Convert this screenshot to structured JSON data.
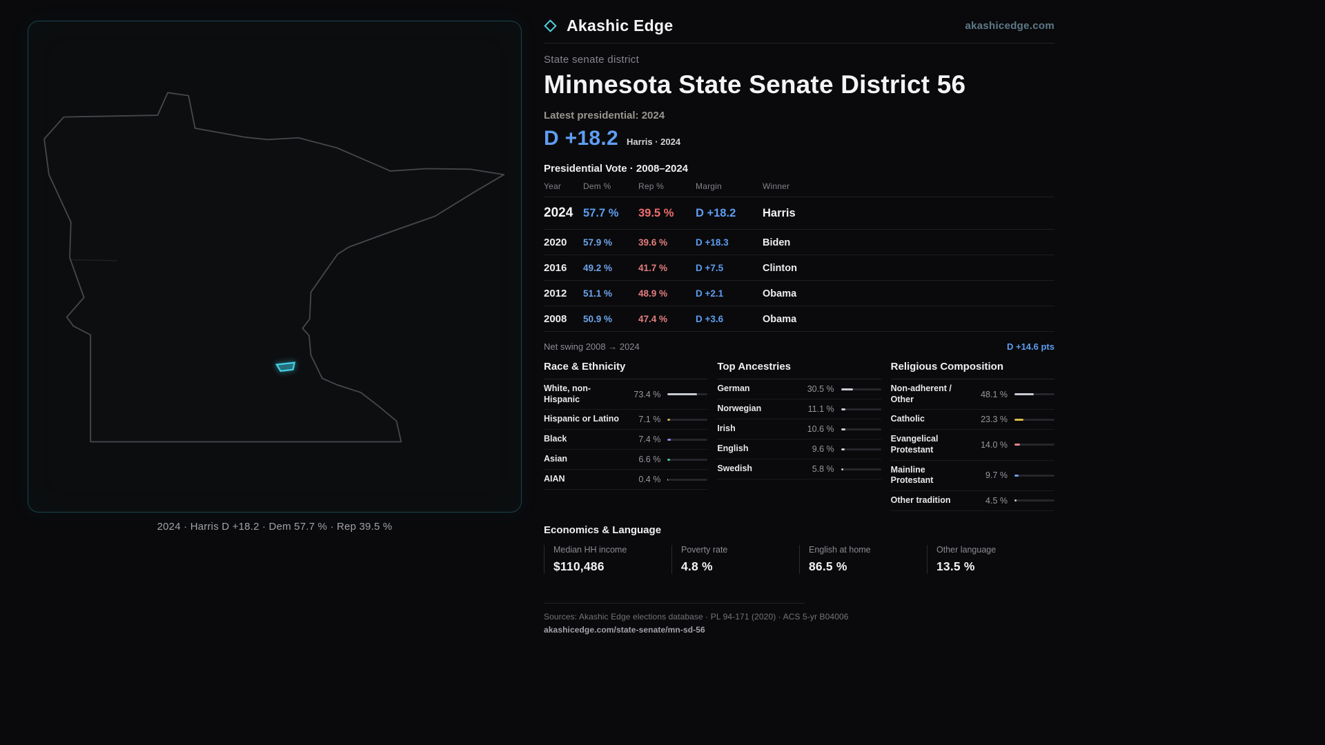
{
  "brand": {
    "name": "Akashic Edge",
    "domain": "akashicedge.com"
  },
  "page": {
    "eyebrow": "State senate district",
    "title": "Minnesota State Senate District 56",
    "latest_label": "Latest presidential: 2024",
    "headline_margin": "D +18.2",
    "headline_note": "Harris · 2024"
  },
  "map": {
    "caption": "2024 · Harris D +18.2 · Dem 57.7 % · Rep 39.5 %"
  },
  "vote_table": {
    "title": "Presidential Vote · 2008–2024",
    "columns": [
      "Year",
      "Dem %",
      "Rep %",
      "Margin",
      "Winner"
    ],
    "rows": [
      {
        "year": "2024",
        "dem": "57.7 %",
        "rep": "39.5 %",
        "margin": "D +18.2",
        "winner": "Harris"
      },
      {
        "year": "2020",
        "dem": "57.9 %",
        "rep": "39.6 %",
        "margin": "D +18.3",
        "winner": "Biden"
      },
      {
        "year": "2016",
        "dem": "49.2 %",
        "rep": "41.7 %",
        "margin": "D +7.5",
        "winner": "Clinton"
      },
      {
        "year": "2012",
        "dem": "51.1 %",
        "rep": "48.9 %",
        "margin": "D +2.1",
        "winner": "Obama"
      },
      {
        "year": "2008",
        "dem": "50.9 %",
        "rep": "47.4 %",
        "margin": "D +3.6",
        "winner": "Obama"
      }
    ]
  },
  "net_swing": {
    "label": "Net swing 2008 → 2024",
    "value": "D +14.6 pts"
  },
  "demographics": [
    {
      "title": "Race & Ethnicity",
      "rows": [
        {
          "label": "White, non-Hispanic",
          "value": "73.4 %",
          "pct": 73.4,
          "color": "#c7cbd4"
        },
        {
          "label": "Hispanic or Latino",
          "value": "7.1 %",
          "pct": 7.1,
          "color": "#d9a942"
        },
        {
          "label": "Black",
          "value": "7.4 %",
          "pct": 7.4,
          "color": "#8d87f0"
        },
        {
          "label": "Asian",
          "value": "6.6 %",
          "pct": 6.6,
          "color": "#3ecf8e"
        },
        {
          "label": "AIAN",
          "value": "0.4 %",
          "pct": 0.4,
          "color": "#c7cbd4"
        }
      ]
    },
    {
      "title": "Top Ancestries",
      "rows": [
        {
          "label": "German",
          "value": "30.5 %",
          "pct": 30.5,
          "color": "#c7cbd4"
        },
        {
          "label": "Norwegian",
          "value": "11.1 %",
          "pct": 11.1,
          "color": "#c7cbd4"
        },
        {
          "label": "Irish",
          "value": "10.6 %",
          "pct": 10.6,
          "color": "#c7cbd4"
        },
        {
          "label": "English",
          "value": "9.6 %",
          "pct": 9.6,
          "color": "#c7cbd4"
        },
        {
          "label": "Swedish",
          "value": "5.8 %",
          "pct": 5.8,
          "color": "#c7cbd4"
        }
      ]
    },
    {
      "title": "Religious Composition",
      "rows": [
        {
          "label": "Non-adherent / Other",
          "value": "48.1 %",
          "pct": 48.1,
          "color": "#c7cbd4"
        },
        {
          "label": "Catholic",
          "value": "23.3 %",
          "pct": 23.3,
          "color": "#d9b94a"
        },
        {
          "label": "Evangelical Protestant",
          "value": "14.0 %",
          "pct": 14.0,
          "color": "#e58585"
        },
        {
          "label": "Mainline Protestant",
          "value": "9.7 %",
          "pct": 9.7,
          "color": "#6f9fe8"
        },
        {
          "label": "Other tradition",
          "value": "4.5 %",
          "pct": 4.5,
          "color": "#c7cbd4"
        }
      ]
    }
  ],
  "economics": {
    "title": "Economics & Language",
    "stats": [
      {
        "label": "Median HH income",
        "value": "$110,486"
      },
      {
        "label": "Poverty rate",
        "value": "4.8 %"
      },
      {
        "label": "English at home",
        "value": "86.5 %"
      },
      {
        "label": "Other language",
        "value": "13.5 %"
      }
    ]
  },
  "footer": {
    "sources": "Sources: Akashic Edge elections database · PL 94-171 (2020) · ACS 5-yr B04006",
    "permalink": "akashicedge.com/state-senate/mn-sd-56"
  },
  "colors": {
    "dem": "#5f9df2",
    "rep": "#ef6e6e",
    "accent": "#41d0e4",
    "background": "#0a0a0c",
    "panel_border": "#17454f"
  },
  "chart_data": [
    {
      "type": "table",
      "title": "Presidential Vote · 2008–2024",
      "columns": [
        "Year",
        "Dem %",
        "Rep %",
        "Margin",
        "Winner"
      ],
      "rows": [
        [
          2024,
          57.7,
          39.5,
          "D +18.2",
          "Harris"
        ],
        [
          2020,
          57.9,
          39.6,
          "D +18.3",
          "Biden"
        ],
        [
          2016,
          49.2,
          41.7,
          "D +7.5",
          "Clinton"
        ],
        [
          2012,
          51.1,
          48.9,
          "D +2.1",
          "Obama"
        ],
        [
          2008,
          50.9,
          47.4,
          "D +3.6",
          "Obama"
        ]
      ],
      "note": "Net swing 2008 → 2024: D +14.6 pts"
    },
    {
      "type": "bar",
      "title": "Race & Ethnicity",
      "categories": [
        "White, non-Hispanic",
        "Hispanic or Latino",
        "Black",
        "Asian",
        "AIAN"
      ],
      "values": [
        73.4,
        7.1,
        7.4,
        6.6,
        0.4
      ],
      "unit": "%",
      "xlim": [
        0,
        100
      ]
    },
    {
      "type": "bar",
      "title": "Top Ancestries",
      "categories": [
        "German",
        "Norwegian",
        "Irish",
        "English",
        "Swedish"
      ],
      "values": [
        30.5,
        11.1,
        10.6,
        9.6,
        5.8
      ],
      "unit": "%",
      "xlim": [
        0,
        100
      ]
    },
    {
      "type": "bar",
      "title": "Religious Composition",
      "categories": [
        "Non-adherent / Other",
        "Catholic",
        "Evangelical Protestant",
        "Mainline Protestant",
        "Other tradition"
      ],
      "values": [
        48.1,
        23.3,
        14.0,
        9.7,
        4.5
      ],
      "unit": "%",
      "xlim": [
        0,
        100
      ]
    },
    {
      "type": "table",
      "title": "Economics & Language",
      "columns": [
        "Median HH income",
        "Poverty rate",
        "English at home",
        "Other language"
      ],
      "rows": [
        [
          "$110,486",
          "4.8 %",
          "86.5 %",
          "13.5 %"
        ]
      ]
    }
  ]
}
